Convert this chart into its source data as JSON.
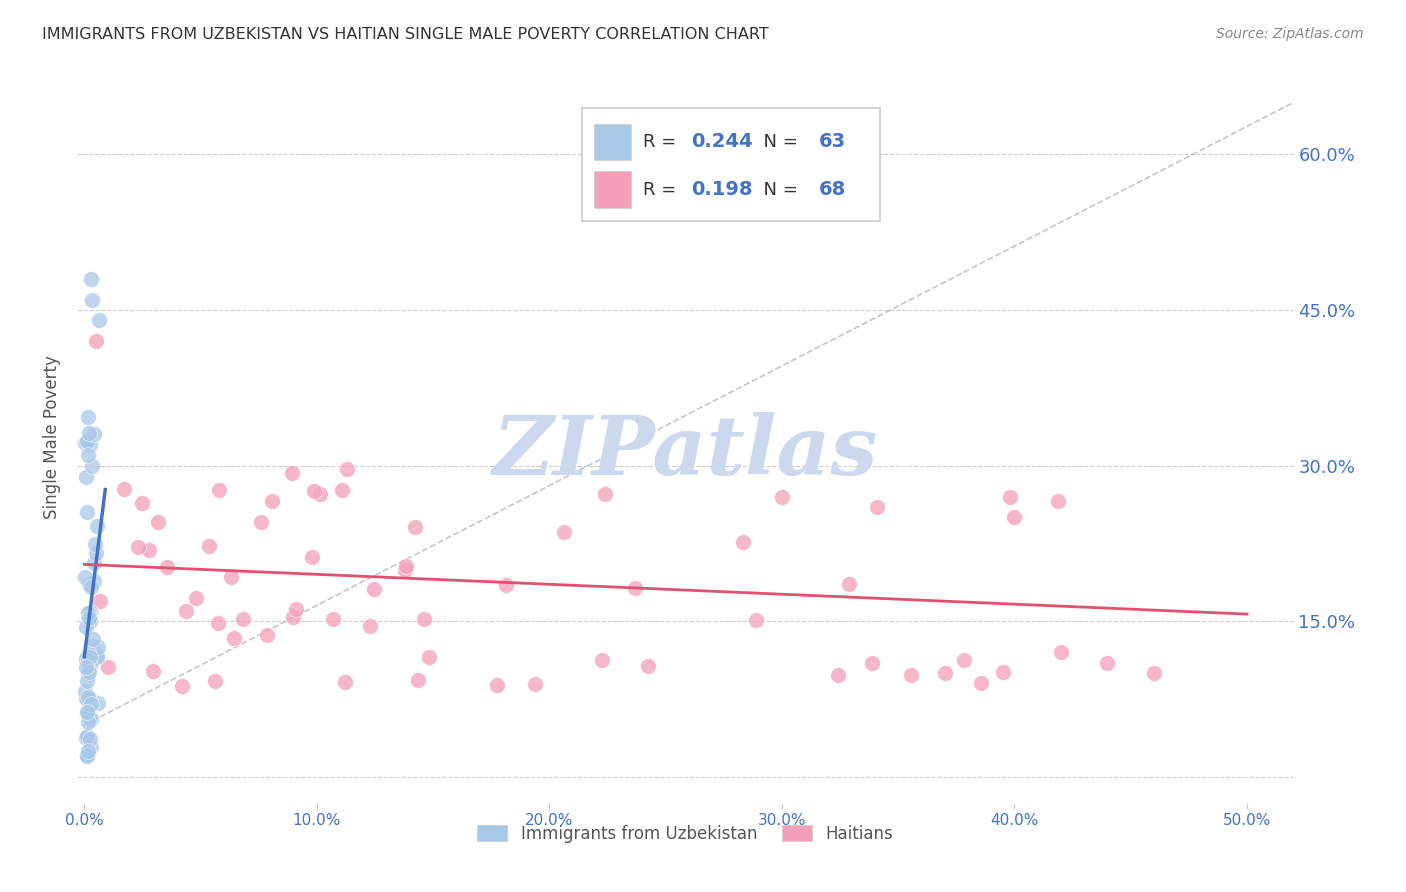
{
  "title": "IMMIGRANTS FROM UZBEKISTAN VS HAITIAN SINGLE MALE POVERTY CORRELATION CHART",
  "source": "Source: ZipAtlas.com",
  "xlabel_ticks": [
    "0.0%",
    "10.0%",
    "20.0%",
    "30.0%",
    "40.0%",
    "50.0%"
  ],
  "xlabel_vals": [
    0.0,
    0.1,
    0.2,
    0.3,
    0.4,
    0.5
  ],
  "ylabel_ticks": [
    "15.0%",
    "30.0%",
    "45.0%",
    "60.0%"
  ],
  "ylabel_vals": [
    0.15,
    0.3,
    0.45,
    0.6
  ],
  "ylabel_label": "Single Male Poverty",
  "xlim": [
    -0.003,
    0.52
  ],
  "ylim": [
    -0.025,
    0.68
  ],
  "uzbek_R": 0.244,
  "uzbek_N": 63,
  "haitian_R": 0.198,
  "haitian_N": 68,
  "uzbek_color": "#a8c8e8",
  "haitian_color": "#f4a0b8",
  "uzbek_line_color": "#4472c4",
  "haitian_line_color": "#e05070",
  "watermark_color": "#ccd8ee",
  "title_color": "#333333",
  "axis_label_color": "#4472c4",
  "grid_color": "#cccccc",
  "legend_text_color": "#333333",
  "legend_val_color": "#4472c4",
  "source_color": "#888888"
}
